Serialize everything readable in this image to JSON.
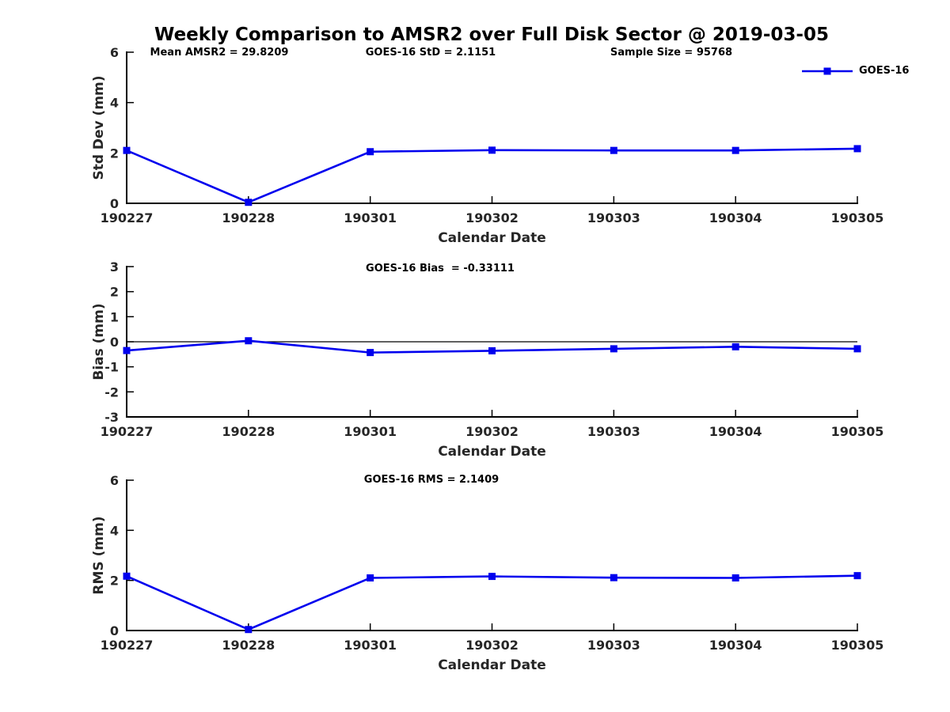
{
  "page": {
    "title": "Weekly Comparison to AMSR2 over Full Disk Sector @ 2019-03-05",
    "background": "#ffffff"
  },
  "colors": {
    "line": "#0000EE",
    "axis": "#000000",
    "tick_label": "#262626",
    "annotation": "#000000",
    "zero_line": "#000000"
  },
  "legend": {
    "label": "GOES-16",
    "marker": "square-icon",
    "color": "#0000EE",
    "position": "top-right"
  },
  "annotations": {
    "mean_amsr2": "Mean AMSR2 = 29.8209",
    "goes16_std": "GOES-16 StD = 2.1151",
    "sample_size": "Sample Size = 95768",
    "goes16_bias": "GOES-16 Bias  = -0.33111",
    "goes16_rms": "GOES-16 RMS = 2.1409"
  },
  "chart_data": [
    {
      "type": "line",
      "panel": "std-dev",
      "categories": [
        "190227",
        "190228",
        "190301",
        "190302",
        "190303",
        "190304",
        "190305"
      ],
      "series": [
        {
          "name": "GOES-16",
          "values": [
            2.1,
            0.04,
            2.05,
            2.11,
            2.1,
            2.1,
            2.17
          ]
        }
      ],
      "xlabel": "Calendar Date",
      "ylabel": "Std Dev (mm)",
      "ylim": [
        0,
        6
      ],
      "yticks": [
        0,
        2,
        4,
        6
      ],
      "zero_line": false,
      "grid": false,
      "marker": "square",
      "line_color": "#0000EE"
    },
    {
      "type": "line",
      "panel": "bias",
      "categories": [
        "190227",
        "190228",
        "190301",
        "190302",
        "190303",
        "190304",
        "190305"
      ],
      "series": [
        {
          "name": "GOES-16",
          "values": [
            -0.35,
            0.04,
            -0.43,
            -0.36,
            -0.28,
            -0.2,
            -0.28
          ]
        }
      ],
      "xlabel": "Calendar Date",
      "ylabel": "Bias (mm)",
      "ylim": [
        -3,
        3
      ],
      "yticks": [
        -3,
        -2,
        -1,
        0,
        1,
        2,
        3
      ],
      "zero_line": true,
      "grid": false,
      "marker": "square",
      "line_color": "#0000EE"
    },
    {
      "type": "line",
      "panel": "rms",
      "categories": [
        "190227",
        "190228",
        "190301",
        "190302",
        "190303",
        "190304",
        "190305"
      ],
      "series": [
        {
          "name": "GOES-16",
          "values": [
            2.17,
            0.04,
            2.1,
            2.16,
            2.11,
            2.1,
            2.19
          ]
        }
      ],
      "xlabel": "Calendar Date",
      "ylabel": "RMS (mm)",
      "ylim": [
        0,
        6
      ],
      "yticks": [
        0,
        2,
        4,
        6
      ],
      "zero_line": false,
      "grid": false,
      "marker": "square",
      "line_color": "#0000EE"
    }
  ]
}
